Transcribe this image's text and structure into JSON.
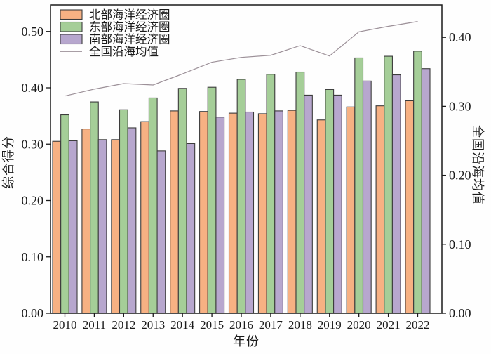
{
  "figure": {
    "xlabel": "年份",
    "ylabel_left": "综合得分",
    "ylabel_right": "全国沿海均值"
  },
  "chart_data": {
    "type": "bar",
    "title": "",
    "xlabel": "年份",
    "ylabel": "综合得分",
    "ylabel_right": "全国沿海均值",
    "categories": [
      "2010",
      "2011",
      "2012",
      "2013",
      "2014",
      "2015",
      "2016",
      "2017",
      "2018",
      "2019",
      "2020",
      "2021",
      "2022"
    ],
    "series": [
      {
        "name": "北部海洋经济圈",
        "kind": "bar",
        "axis": "left",
        "color": "#F7B183",
        "values": [
          0.305,
          0.327,
          0.308,
          0.34,
          0.359,
          0.358,
          0.355,
          0.354,
          0.36,
          0.343,
          0.366,
          0.368,
          0.377
        ]
      },
      {
        "name": "东部海洋经济圈",
        "kind": "bar",
        "axis": "left",
        "color": "#A5CE98",
        "values": [
          0.352,
          0.375,
          0.361,
          0.382,
          0.399,
          0.401,
          0.415,
          0.424,
          0.428,
          0.397,
          0.453,
          0.456,
          0.465
        ]
      },
      {
        "name": "南部海洋经济圈",
        "kind": "bar",
        "axis": "left",
        "color": "#B7A7CE",
        "values": [
          0.306,
          0.308,
          0.329,
          0.288,
          0.301,
          0.348,
          0.357,
          0.359,
          0.387,
          0.387,
          0.412,
          0.423,
          0.434
        ]
      },
      {
        "name": "全国沿海均值",
        "kind": "line",
        "axis": "right",
        "color": "#9C9098",
        "values": [
          0.315,
          0.325,
          0.333,
          0.331,
          0.347,
          0.364,
          0.371,
          0.374,
          0.388,
          0.373,
          0.408,
          0.416,
          0.423
        ]
      }
    ],
    "axes": {
      "left": {
        "label": "综合得分",
        "ticks": [
          "0.00",
          "0.10",
          "0.20",
          "0.30",
          "0.40",
          "0.50"
        ],
        "tick_values": [
          0.0,
          0.1,
          0.2,
          0.3,
          0.4,
          0.5
        ],
        "lim": [
          0.0,
          0.547
        ]
      },
      "right": {
        "label": "全国沿海均值",
        "ticks": [
          "0.00",
          "0.10",
          "0.20",
          "0.30",
          "0.40"
        ],
        "tick_values": [
          0.0,
          0.1,
          0.2,
          0.3,
          0.4
        ],
        "lim": [
          0.0,
          0.447
        ]
      }
    },
    "grid": false,
    "legend_position": "upper-left"
  }
}
